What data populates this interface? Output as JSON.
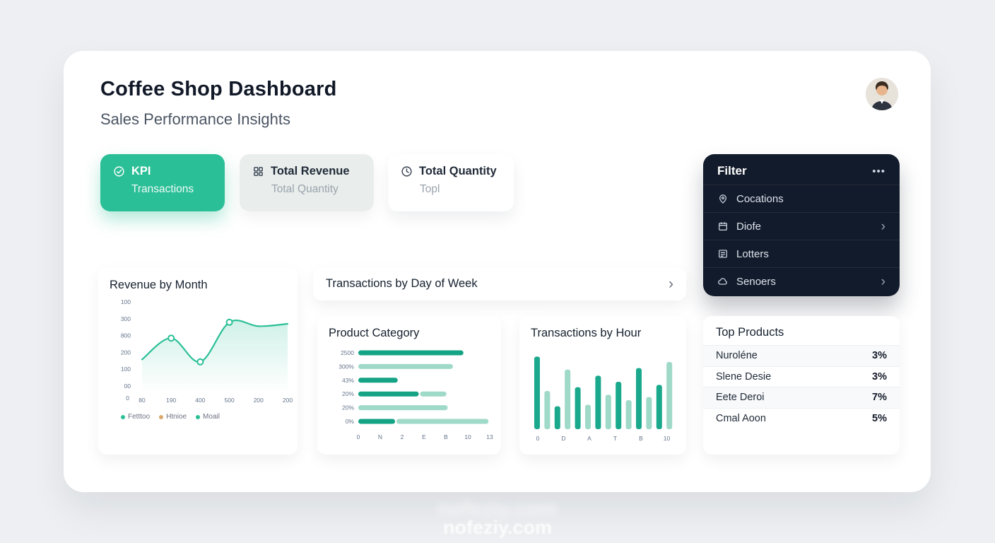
{
  "header": {
    "title": "Coffee Shop Dashboard",
    "subtitle": "Sales Performance Insights"
  },
  "kpi_cards": [
    {
      "title": "KPI",
      "subtitle": "Transactions"
    },
    {
      "title": "Total Revenue",
      "subtitle": "Total Quantity"
    },
    {
      "title": "Total Quantity",
      "subtitle": "Topl"
    }
  ],
  "filter": {
    "title": "Filter",
    "menu": "•••",
    "chevron": "›",
    "items": [
      {
        "label": "Cocations"
      },
      {
        "label": "Diofe"
      },
      {
        "label": "Lotters"
      },
      {
        "label": "Senoers"
      }
    ]
  },
  "panels": {
    "revenue_title": "Revenue by Month",
    "day_title": "Transactions by Day of Week",
    "day_chevron": "›",
    "category_title": "Product Category",
    "hour_title": "Transactions by Hour",
    "top_title": "Top Products"
  },
  "top_products": [
    {
      "name": "Nuroléne",
      "value": "3%"
    },
    {
      "name": "Slene Desie",
      "value": "3%"
    },
    {
      "name": "Eete Deroi",
      "value": "7%"
    },
    {
      "name": "Cmal Aoon",
      "value": "5%"
    }
  ],
  "colors": {
    "accent": "#2abf96",
    "accent_dark": "#15a385",
    "accent_light": "#a7dcca",
    "dark_panel": "#121b2b"
  },
  "chart_data": [
    {
      "type": "line",
      "title": "Revenue by Month",
      "y_ticks": [
        "100",
        "300",
        "800",
        "200",
        "100",
        "00"
      ],
      "origin": "0",
      "x_ticks": [
        "80",
        "190",
        "400",
        "500",
        "200",
        "200"
      ],
      "values": [
        38,
        65,
        35,
        85,
        80,
        83
      ],
      "ylim": [
        0,
        100
      ],
      "dots": [
        1,
        2,
        3
      ],
      "color": "#2abf96",
      "grid": false,
      "legend": [
        {
          "label": "Fetttoo",
          "color": "#2abf96"
        },
        {
          "label": "Htnioe",
          "color": "#d9a86a"
        },
        {
          "label": "Moail",
          "color": "#2abf96"
        }
      ]
    },
    {
      "type": "bar",
      "title": "Product Category",
      "orientation": "horizontal",
      "categories": [
        "2500",
        "300%",
        "43%",
        "20%",
        "20%",
        "0%"
      ],
      "series": [
        {
          "name": "primary",
          "values": [
            80,
            0,
            30,
            46,
            0,
            28
          ]
        },
        {
          "name": "secondary",
          "values": [
            0,
            72,
            0,
            20,
            68,
            70
          ]
        }
      ],
      "xlim": [
        0,
        100
      ],
      "x_ticks": [
        "0",
        "N",
        "2",
        "E",
        "B",
        "10",
        "13"
      ],
      "colors": [
        "#15a385",
        "#9fd9c8"
      ]
    },
    {
      "type": "bar",
      "title": "Transactions by Hour",
      "orientation": "vertical",
      "values": [
        95,
        50,
        30,
        78,
        55,
        32,
        70,
        45,
        62,
        38,
        80,
        42,
        58,
        88
      ],
      "ylim": [
        0,
        100
      ],
      "x_ticks": [
        "0",
        "D",
        "A",
        "T",
        "B",
        "10"
      ],
      "colors": [
        "#1aa98c",
        "#9fd9c8"
      ]
    }
  ],
  "watermark": "nofeziy.com"
}
